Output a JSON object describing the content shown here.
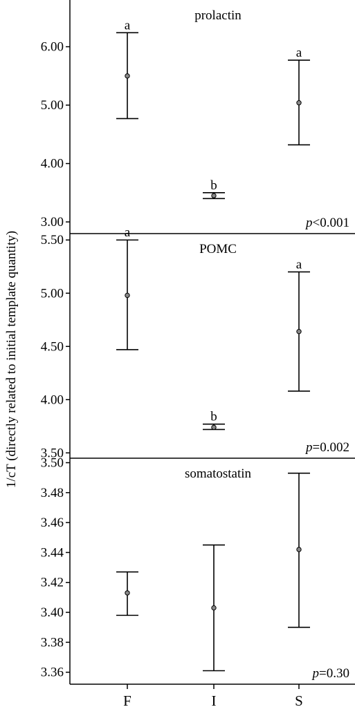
{
  "chart_data": {
    "type": "errorbar",
    "ylabel": "1/cT (directly related to initial template quantity)",
    "categories": [
      "F",
      "I",
      "S"
    ],
    "panels": [
      {
        "title": "prolactin",
        "p_italic": "p",
        "p_rest": "<0.001",
        "ylim": [
          2.8,
          6.8
        ],
        "yticks": [
          3.0,
          4.0,
          5.0,
          6.0
        ],
        "ytick_labels": [
          "3.00",
          "4.00",
          "5.00",
          "6.00"
        ],
        "points": [
          {
            "category": "F",
            "mean": 5.5,
            "low": 4.77,
            "high": 6.24,
            "letter": "a"
          },
          {
            "category": "I",
            "mean": 3.45,
            "low": 3.4,
            "high": 3.5,
            "letter": "b"
          },
          {
            "category": "S",
            "mean": 5.04,
            "low": 4.32,
            "high": 5.77,
            "letter": "a"
          }
        ]
      },
      {
        "title": "POMC",
        "p_italic": "p",
        "p_rest": "=0.002",
        "ylim": [
          3.45,
          5.56
        ],
        "yticks": [
          3.5,
          4.0,
          4.5,
          5.0,
          5.5
        ],
        "ytick_labels": [
          "3.50",
          "4.00",
          "4.50",
          "5.00",
          "5.50"
        ],
        "points": [
          {
            "category": "F",
            "mean": 4.98,
            "low": 4.47,
            "high": 5.5,
            "letter": "a"
          },
          {
            "category": "I",
            "mean": 3.74,
            "low": 3.72,
            "high": 3.77,
            "letter": "b"
          },
          {
            "category": "S",
            "mean": 4.64,
            "low": 4.08,
            "high": 5.2,
            "letter": "a"
          }
        ]
      },
      {
        "title": "somatostatin",
        "p_italic": "p",
        "p_rest": "=0.30",
        "ylim": [
          3.352,
          3.503
        ],
        "yticks": [
          3.36,
          3.38,
          3.4,
          3.42,
          3.44,
          3.46,
          3.48,
          3.5
        ],
        "ytick_labels": [
          "3.36",
          "3.38",
          "3.40",
          "3.42",
          "3.44",
          "3.46",
          "3.48",
          "3.50"
        ],
        "points": [
          {
            "category": "F",
            "mean": 3.413,
            "low": 3.398,
            "high": 3.427,
            "letter": ""
          },
          {
            "category": "I",
            "mean": 3.403,
            "low": 3.361,
            "high": 3.445,
            "letter": ""
          },
          {
            "category": "S",
            "mean": 3.442,
            "low": 3.39,
            "high": 3.493,
            "letter": ""
          }
        ]
      }
    ]
  }
}
